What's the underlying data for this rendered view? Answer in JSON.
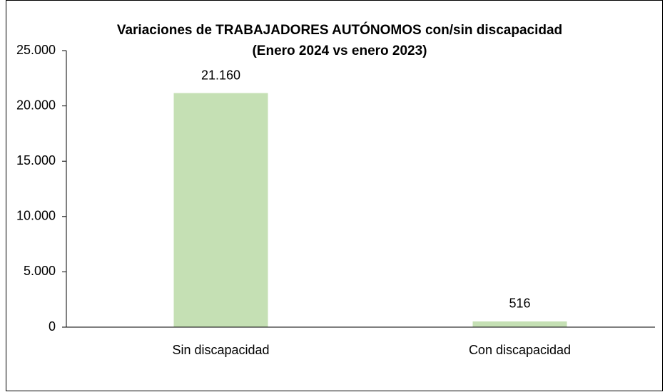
{
  "chart_data": {
    "type": "bar",
    "title": [
      "Variaciones de TRABAJADORES  AUTÓNOMOS con/sin discapacidad",
      "(Enero 2024 vs enero 2023)"
    ],
    "categories": [
      "Sin discapacidad",
      "Con discapacidad"
    ],
    "values": [
      21160,
      516
    ],
    "value_labels": [
      "21.160",
      "516"
    ],
    "color": "#c5e0b4",
    "ylim": [
      0,
      25000
    ],
    "yticks": [
      0,
      {
        "value": 5000,
        "label": "5.000"
      },
      {
        "value": 10000,
        "label": "10.000"
      },
      {
        "value": 15000,
        "label": "15.000"
      },
      {
        "value": 20000,
        "label": "20.000"
      },
      {
        "value": 25000,
        "label": "25.000"
      }
    ],
    "grid": false
  }
}
